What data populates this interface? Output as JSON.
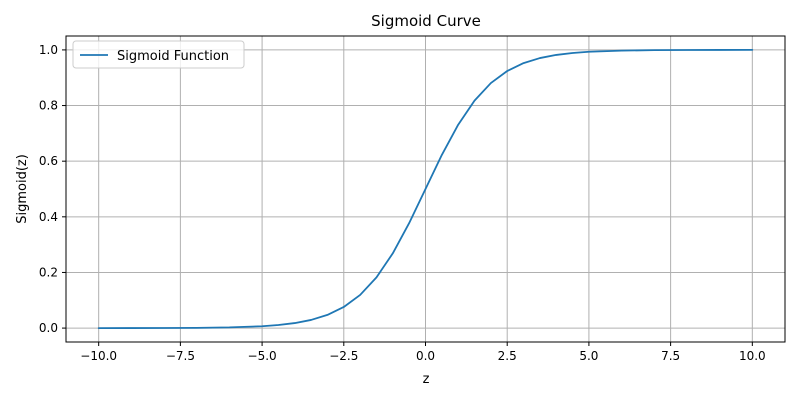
{
  "chart_data": {
    "type": "line",
    "title": "Sigmoid Curve",
    "xlabel": "z",
    "ylabel": "Sigmoid(z)",
    "xlim": [
      -11,
      11
    ],
    "ylim": [
      -0.05,
      1.05
    ],
    "x_ticks": [
      -10.0,
      -7.5,
      -5.0,
      -2.5,
      0.0,
      2.5,
      5.0,
      7.5,
      10.0
    ],
    "x_tick_labels": [
      "−10.0",
      "−7.5",
      "−5.0",
      "−2.5",
      "0.0",
      "2.5",
      "5.0",
      "7.5",
      "10.0"
    ],
    "y_ticks": [
      0.0,
      0.2,
      0.4,
      0.6,
      0.8,
      1.0
    ],
    "y_tick_labels": [
      "0.0",
      "0.2",
      "0.4",
      "0.6",
      "0.8",
      "1.0"
    ],
    "grid": true,
    "legend_position": "top-left",
    "series": [
      {
        "name": "Sigmoid Function",
        "color": "#1f77b4",
        "x": [
          -10,
          -9,
          -8,
          -7,
          -6,
          -5,
          -4.5,
          -4,
          -3.5,
          -3,
          -2.5,
          -2,
          -1.5,
          -1,
          -0.5,
          0,
          0.5,
          1,
          1.5,
          2,
          2.5,
          3,
          3.5,
          4,
          4.5,
          5,
          6,
          7,
          8,
          9,
          10
        ],
        "y": [
          0.0,
          0.0001,
          0.0003,
          0.0009,
          0.0025,
          0.0067,
          0.011,
          0.018,
          0.0293,
          0.0474,
          0.0759,
          0.1192,
          0.1824,
          0.2689,
          0.3775,
          0.5,
          0.6225,
          0.7311,
          0.8176,
          0.8808,
          0.9241,
          0.9526,
          0.9707,
          0.982,
          0.989,
          0.9933,
          0.9975,
          0.9991,
          0.9997,
          0.9999,
          1.0
        ]
      }
    ]
  }
}
